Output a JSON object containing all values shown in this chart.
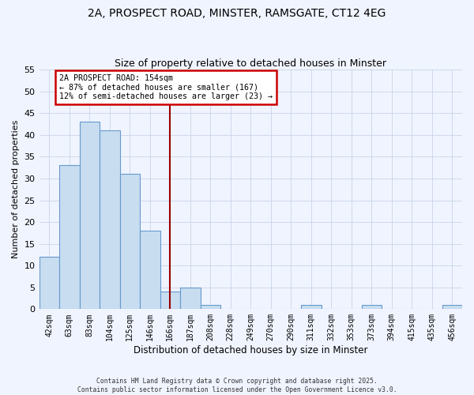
{
  "title1": "2A, PROSPECT ROAD, MINSTER, RAMSGATE, CT12 4EG",
  "title2": "Size of property relative to detached houses in Minster",
  "xlabel": "Distribution of detached houses by size in Minster",
  "ylabel": "Number of detached properties",
  "bar_labels": [
    "42sqm",
    "63sqm",
    "83sqm",
    "104sqm",
    "125sqm",
    "146sqm",
    "166sqm",
    "187sqm",
    "208sqm",
    "228sqm",
    "249sqm",
    "270sqm",
    "290sqm",
    "311sqm",
    "332sqm",
    "353sqm",
    "373sqm",
    "394sqm",
    "415sqm",
    "435sqm",
    "456sqm"
  ],
  "bar_values": [
    12,
    33,
    43,
    41,
    31,
    18,
    4,
    5,
    1,
    0,
    0,
    0,
    0,
    1,
    0,
    0,
    1,
    0,
    0,
    0,
    1
  ],
  "bar_color": "#c8ddf0",
  "bar_edge_color": "#6699cc",
  "vline_x": 6.0,
  "vline_color": "#990000",
  "annotation_lines": [
    "2A PROSPECT ROAD: 154sqm",
    "← 87% of detached houses are smaller (167)",
    "12% of semi-detached houses are larger (23) →"
  ],
  "annotation_box_color": "#ffffff",
  "annotation_box_edge_color": "#cc0000",
  "background_color": "#f0f4ff",
  "grid_color": "#c8d4e8",
  "ylim": [
    0,
    55
  ],
  "yticks": [
    0,
    5,
    10,
    15,
    20,
    25,
    30,
    35,
    40,
    45,
    50,
    55
  ],
  "footer1": "Contains HM Land Registry data © Crown copyright and database right 2025.",
  "footer2": "Contains public sector information licensed under the Open Government Licence v3.0."
}
